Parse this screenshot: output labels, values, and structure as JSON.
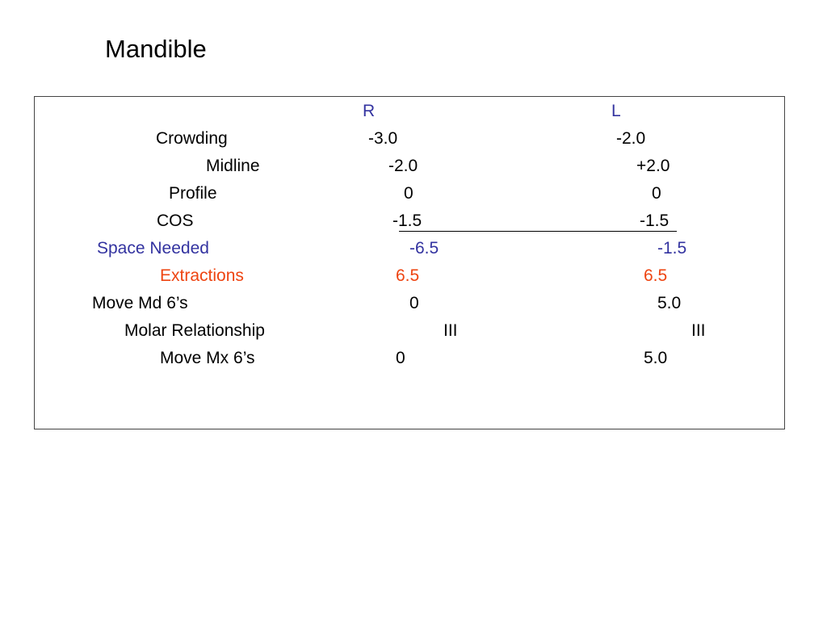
{
  "title": "Mandible",
  "columns": {
    "right": "R",
    "left": "L"
  },
  "rows": [
    {
      "label": "Crowding",
      "r": "-3.0",
      "l": "-2.0"
    },
    {
      "label": "Midline",
      "r": "-2.0",
      "l": "+2.0"
    },
    {
      "label": "Profile",
      "r": "0",
      "l": "0"
    },
    {
      "label": "COS",
      "r": "-1.5",
      "l": "-1.5"
    },
    {
      "label": "Space Needed",
      "r": "-6.5",
      "l": "-1.5"
    },
    {
      "label": "Extractions",
      "r": "6.5",
      "l": "6.5"
    },
    {
      "label": "Move Md 6’s",
      "r": "0",
      "l": "5.0"
    },
    {
      "label": "Molar Relationship",
      "r": "III",
      "l": "III"
    },
    {
      "label": "Move Mx 6’s",
      "r": "0",
      "l": "5.0"
    }
  ],
  "colors": {
    "header": "#3333a0",
    "space_needed": "#3333a0",
    "extractions": "#ee4411",
    "text": "#000000"
  }
}
